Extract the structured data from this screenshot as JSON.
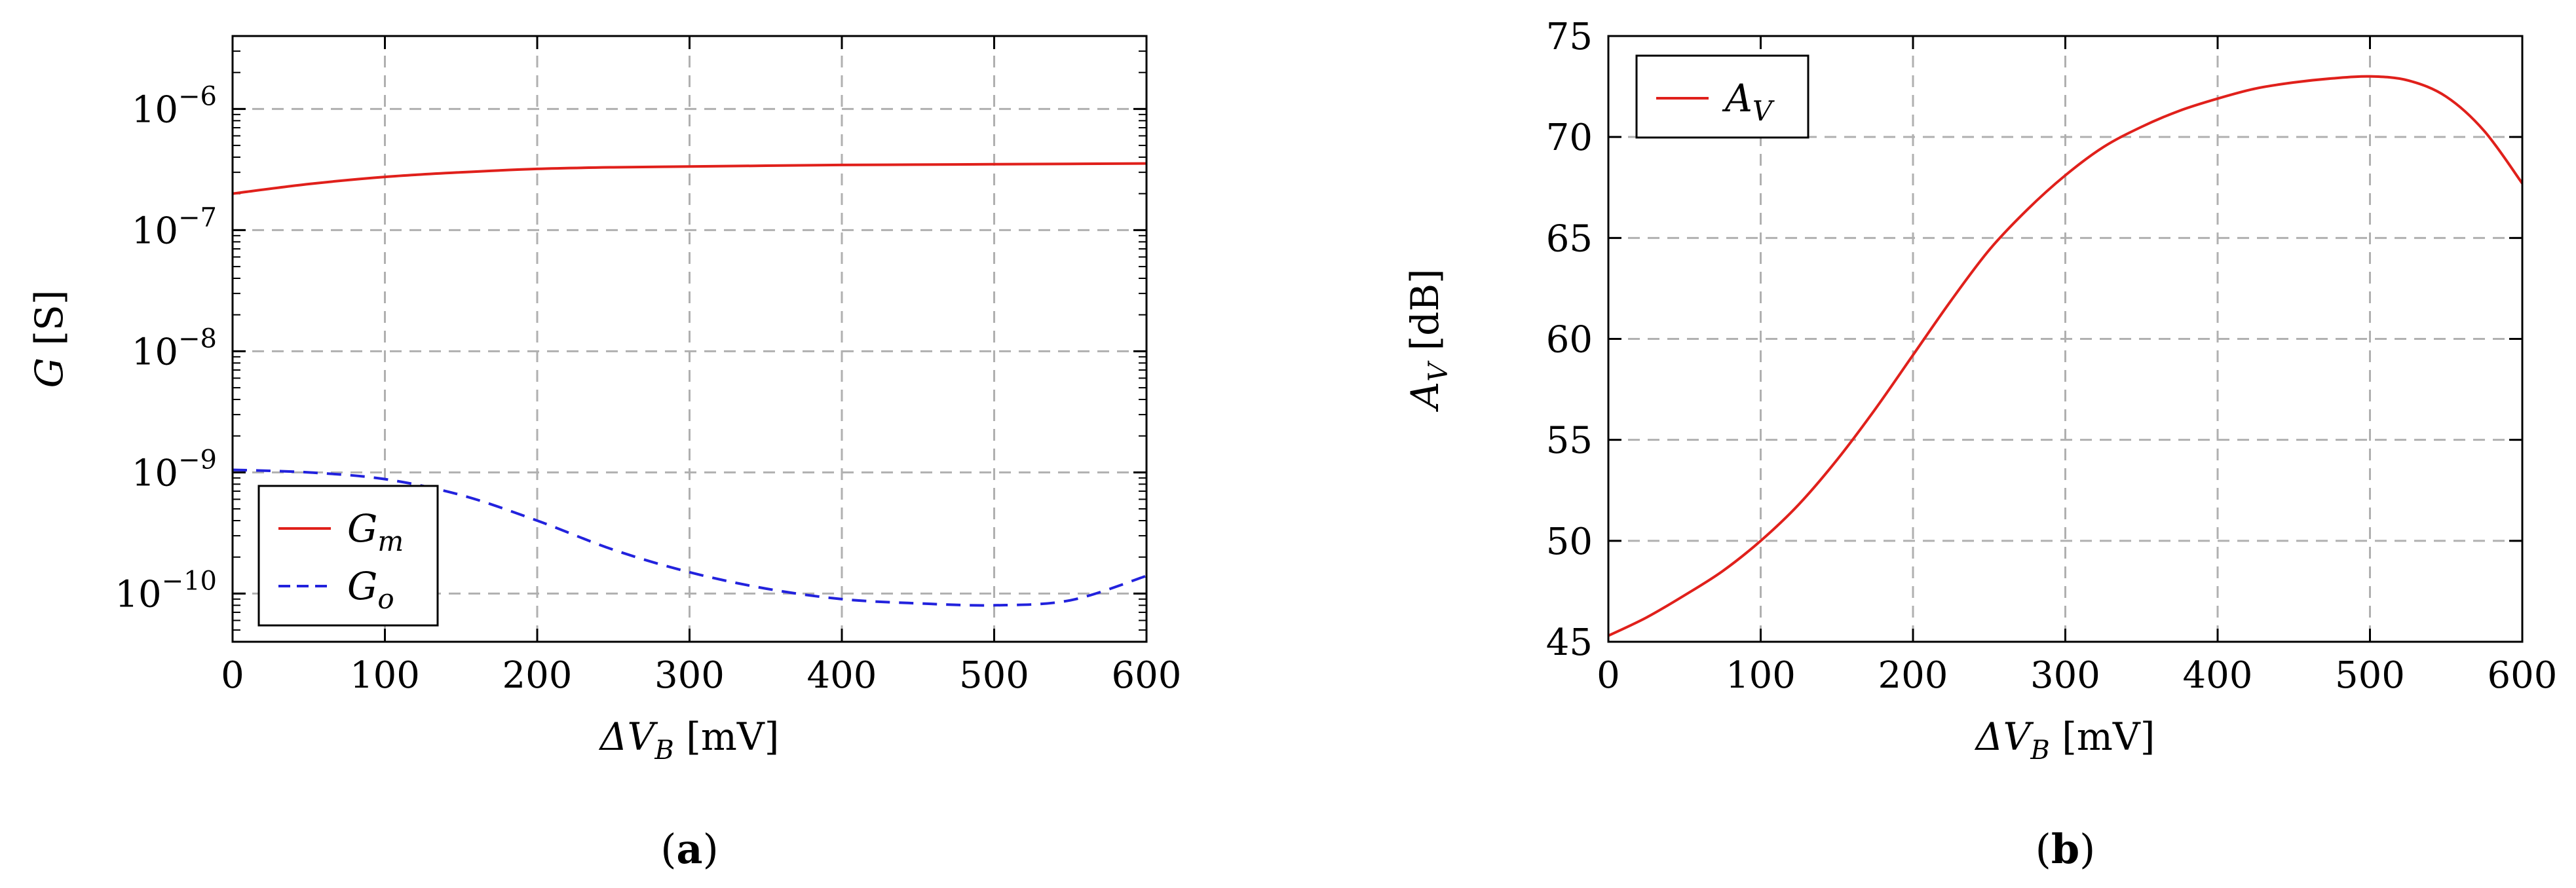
{
  "chart_data": [
    {
      "type": "line",
      "caption": "(a)",
      "xlabel": "ΔV_B [mV]",
      "ylabel": "G [S]",
      "xlim": [
        0,
        600
      ],
      "ylim": [
        4e-11,
        4e-06
      ],
      "yscale": "log",
      "x_ticks": [
        "0",
        "100",
        "200",
        "300",
        "400",
        "500",
        "600"
      ],
      "y_ticks": [
        "10^-10",
        "10^-9",
        "10^-8",
        "10^-7",
        "10^-6"
      ],
      "grid": true,
      "legend_position": "bottom-left",
      "x": [
        0,
        50,
        100,
        150,
        200,
        250,
        300,
        350,
        400,
        450,
        500,
        550,
        600
      ],
      "series": [
        {
          "name": "G_m",
          "color": "#e0201b",
          "dash": "solid",
          "values": [
            2e-07,
            2.4e-07,
            2.75e-07,
            3e-07,
            3.2e-07,
            3.3e-07,
            3.35e-07,
            3.4e-07,
            3.45e-07,
            3.47e-07,
            3.5e-07,
            3.52e-07,
            3.55e-07
          ]
        },
        {
          "name": "G_o",
          "color": "#2222dd",
          "dash": "dashed",
          "values": [
            1.05e-09,
            1e-09,
            8.8e-10,
            6.5e-10,
            4e-10,
            2.3e-10,
            1.5e-10,
            1.1e-10,
            9e-11,
            8.3e-11,
            8e-11,
            8.8e-11,
            1.4e-10
          ]
        }
      ]
    },
    {
      "type": "line",
      "caption": "(b)",
      "xlabel": "ΔV_B [mV]",
      "ylabel": "A_V [dB]",
      "xlim": [
        0,
        600
      ],
      "ylim": [
        45,
        75
      ],
      "x_ticks": [
        "0",
        "100",
        "200",
        "300",
        "400",
        "500",
        "600"
      ],
      "y_ticks": [
        "45",
        "50",
        "55",
        "60",
        "65",
        "70",
        "75"
      ],
      "grid": true,
      "legend_position": "top-left",
      "x": [
        0,
        25,
        50,
        75,
        100,
        125,
        150,
        175,
        200,
        225,
        250,
        275,
        300,
        325,
        350,
        375,
        400,
        425,
        450,
        475,
        500,
        525,
        550,
        575,
        600
      ],
      "series": [
        {
          "name": "A_V",
          "color": "#e0201b",
          "dash": "solid",
          "values": [
            45.3,
            46.2,
            47.3,
            48.5,
            50.0,
            51.8,
            54.0,
            56.5,
            59.2,
            61.9,
            64.4,
            66.4,
            68.1,
            69.5,
            70.5,
            71.3,
            71.9,
            72.4,
            72.7,
            72.9,
            73.0,
            72.8,
            72.0,
            70.3,
            67.7
          ]
        }
      ]
    }
  ]
}
